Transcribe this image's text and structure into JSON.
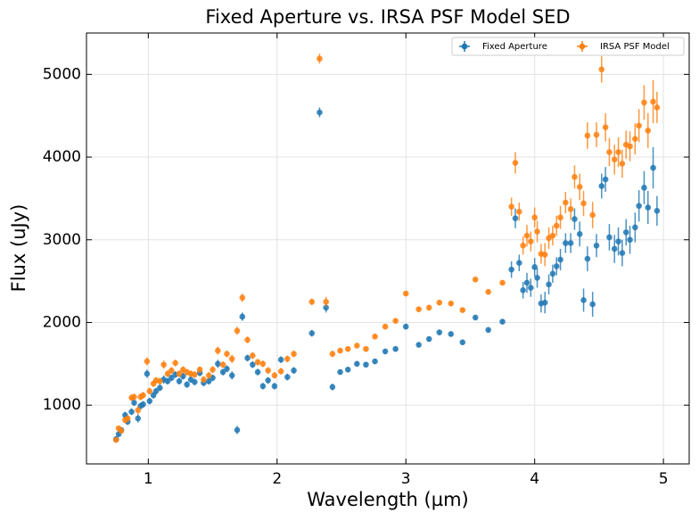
{
  "chart_data": {
    "type": "scatter",
    "title": "Fixed Aperture vs. IRSA PSF Model SED",
    "x_label": "Wavelength (µm)",
    "y_label": "Flux (uJy)",
    "xlim": [
      0.52,
      5.2
    ],
    "ylim": [
      290,
      5500
    ],
    "xticks": [
      1,
      2,
      3,
      4,
      5
    ],
    "yticks": [
      1000,
      2000,
      3000,
      4000,
      5000
    ],
    "grid": true,
    "legend": "upper right",
    "x": [
      0.75,
      0.77,
      0.79,
      0.82,
      0.84,
      0.87,
      0.89,
      0.92,
      0.94,
      0.96,
      0.99,
      1.01,
      1.04,
      1.06,
      1.09,
      1.12,
      1.15,
      1.18,
      1.21,
      1.24,
      1.27,
      1.3,
      1.33,
      1.36,
      1.4,
      1.43,
      1.47,
      1.5,
      1.54,
      1.58,
      1.61,
      1.65,
      1.69,
      1.73,
      1.77,
      1.81,
      1.85,
      1.89,
      1.93,
      1.98,
      2.03,
      2.08,
      2.13,
      2.27,
      2.33,
      2.38,
      2.43,
      2.49,
      2.55,
      2.62,
      2.69,
      2.76,
      2.84,
      2.92,
      3.0,
      3.1,
      3.18,
      3.26,
      3.35,
      3.44,
      3.54,
      3.64,
      3.75,
      3.82,
      3.85,
      3.88,
      3.91,
      3.94,
      3.97,
      4.0,
      4.02,
      4.05,
      4.08,
      4.11,
      4.14,
      4.17,
      4.2,
      4.24,
      4.28,
      4.31,
      4.35,
      4.38,
      4.41,
      4.45,
      4.48,
      4.52,
      4.55,
      4.58,
      4.62,
      4.65,
      4.68,
      4.71,
      4.74,
      4.78,
      4.81,
      4.85,
      4.88,
      4.92,
      4.95
    ],
    "series": [
      {
        "name": "Fixed Aperture",
        "color": "#1f77b4",
        "values": [
          590,
          650,
          700,
          880,
          800,
          920,
          1030,
          840,
          990,
          1010,
          1380,
          1050,
          1120,
          1170,
          1210,
          1310,
          1290,
          1330,
          1370,
          1290,
          1350,
          1250,
          1310,
          1280,
          1390,
          1270,
          1290,
          1330,
          1500,
          1400,
          1440,
          1360,
          700,
          2070,
          1570,
          1490,
          1400,
          1230,
          1300,
          1230,
          1550,
          1340,
          1420,
          1870,
          4540,
          2180,
          1220,
          1400,
          1430,
          1500,
          1490,
          1530,
          1650,
          1680,
          1950,
          1730,
          1800,
          1880,
          1860,
          1760,
          2060,
          1910,
          2010,
          2640,
          3260,
          2720,
          2390,
          2480,
          2420,
          2670,
          2540,
          2230,
          2240,
          2460,
          2590,
          2680,
          2760,
          2960,
          2960,
          3250,
          3070,
          2270,
          2770,
          2220,
          2930,
          3650,
          3730,
          3030,
          2890,
          2980,
          2840,
          3090,
          3000,
          3150,
          3410,
          3630,
          3390,
          3870,
          3350
        ],
        "yerr": [
          30,
          30,
          30,
          40,
          40,
          40,
          40,
          50,
          40,
          40,
          50,
          40,
          40,
          40,
          40,
          50,
          40,
          40,
          40,
          40,
          40,
          40,
          40,
          40,
          40,
          40,
          40,
          40,
          50,
          40,
          40,
          50,
          50,
          50,
          40,
          40,
          40,
          40,
          40,
          40,
          40,
          40,
          40,
          40,
          60,
          60,
          40,
          30,
          30,
          30,
          30,
          30,
          30,
          30,
          30,
          30,
          30,
          30,
          30,
          30,
          30,
          30,
          30,
          100,
          120,
          100,
          100,
          120,
          110,
          110,
          120,
          110,
          130,
          120,
          110,
          110,
          130,
          120,
          120,
          130,
          150,
          140,
          150,
          150,
          140,
          150,
          150,
          160,
          170,
          170,
          160,
          160,
          170,
          180,
          190,
          200,
          200,
          250,
          180
        ]
      },
      {
        "name": "IRSA PSF Model",
        "color": "#ff7f0e",
        "values": [
          580,
          720,
          690,
          820,
          840,
          1090,
          1100,
          940,
          1100,
          1120,
          1530,
          1170,
          1260,
          1300,
          1290,
          1490,
          1380,
          1420,
          1510,
          1380,
          1430,
          1400,
          1380,
          1370,
          1430,
          1310,
          1360,
          1430,
          1660,
          1490,
          1620,
          1560,
          1900,
          2300,
          1790,
          1600,
          1520,
          1500,
          1420,
          1360,
          1410,
          1560,
          1620,
          2250,
          5190,
          2250,
          1620,
          1660,
          1680,
          1720,
          1680,
          1830,
          1950,
          2020,
          2350,
          2160,
          2180,
          2240,
          2230,
          2150,
          2520,
          2370,
          2480,
          3400,
          3930,
          3340,
          2930,
          3050,
          2980,
          3270,
          3100,
          2830,
          2820,
          3020,
          3050,
          3170,
          3270,
          3450,
          3370,
          3760,
          3640,
          3440,
          4260,
          3300,
          4270,
          5060,
          4360,
          4060,
          3970,
          4060,
          3920,
          4150,
          4130,
          4220,
          4380,
          4660,
          4320,
          4670,
          4600
        ],
        "yerr": [
          30,
          30,
          30,
          40,
          40,
          40,
          40,
          50,
          40,
          40,
          50,
          40,
          40,
          40,
          40,
          50,
          40,
          40,
          40,
          40,
          40,
          40,
          40,
          40,
          40,
          40,
          40,
          40,
          50,
          40,
          40,
          50,
          50,
          50,
          40,
          40,
          40,
          40,
          40,
          40,
          40,
          40,
          40,
          40,
          60,
          60,
          40,
          30,
          30,
          30,
          30,
          30,
          30,
          30,
          30,
          30,
          30,
          30,
          30,
          30,
          30,
          30,
          30,
          110,
          130,
          110,
          110,
          130,
          120,
          120,
          130,
          120,
          140,
          130,
          120,
          120,
          140,
          130,
          130,
          140,
          160,
          150,
          160,
          160,
          150,
          160,
          170,
          170,
          180,
          180,
          170,
          170,
          180,
          190,
          200,
          210,
          210,
          260,
          190
        ]
      }
    ]
  }
}
